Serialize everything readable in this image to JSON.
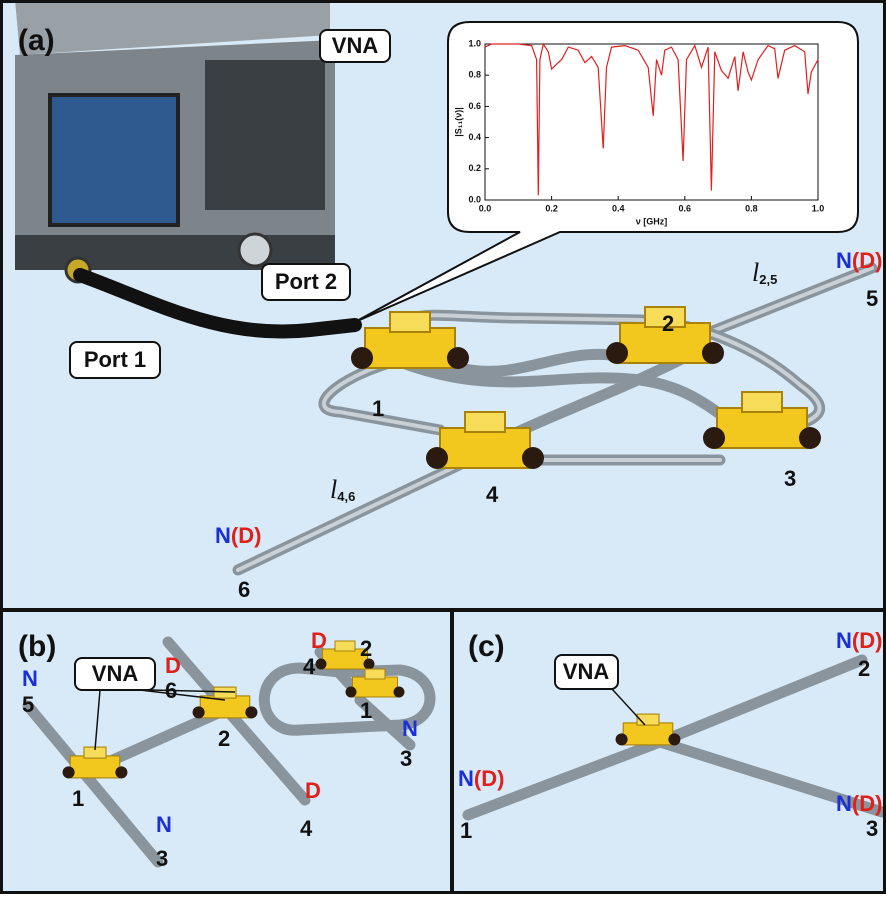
{
  "panel_a": {
    "label": "(a)",
    "vna": "VNA",
    "port1": "Port 1",
    "port2": "Port 2",
    "nodes": [
      "1",
      "2",
      "3",
      "4",
      "5",
      "6"
    ],
    "end5": {
      "n": "N",
      "d": "(D)"
    },
    "end6": {
      "n": "N",
      "d": "(D)"
    },
    "l25": {
      "symbol": "l",
      "sub": "2,5"
    },
    "l46": {
      "symbol": "l",
      "sub": "4,6"
    }
  },
  "panel_b": {
    "label": "(b)",
    "vna": "VNA",
    "labels": [
      "N",
      "5",
      "D",
      "6",
      "1",
      "2",
      "N",
      "3",
      "D",
      "4",
      "D",
      "4",
      "2",
      "1",
      "N",
      "3"
    ]
  },
  "panel_c": {
    "label": "(c)",
    "vna": "VNA",
    "ends": [
      {
        "n": "N",
        "d": "(D)",
        "node": "2"
      },
      {
        "n": "N",
        "d": "(D)",
        "node": "1"
      },
      {
        "n": "N",
        "d": "(D)",
        "node": "3"
      }
    ]
  },
  "chart_data": {
    "type": "line",
    "xlabel": "ν [GHz]",
    "ylabel": "|S₁₁(ν)|",
    "xlim": [
      0,
      1
    ],
    "ylim": [
      0,
      1
    ],
    "xticks": [
      {
        "value": 0,
        "label": "0.0"
      },
      {
        "value": 0.2,
        "label": "0.2"
      },
      {
        "value": 0.4,
        "label": "0.4"
      },
      {
        "value": 0.6,
        "label": "0.6"
      },
      {
        "value": 0.8,
        "label": "0.8"
      },
      {
        "value": 1,
        "label": "1.0"
      }
    ],
    "yticks": [
      {
        "value": 0,
        "label": "0.0"
      },
      {
        "value": 0.2,
        "label": "0.2"
      },
      {
        "value": 0.4,
        "label": "0.4"
      },
      {
        "value": 0.6,
        "label": "0.6"
      },
      {
        "value": 0.8,
        "label": "0.8"
      },
      {
        "value": 1,
        "label": "1.0"
      }
    ],
    "color": "#e02020",
    "x": [
      0,
      0.02,
      0.1,
      0.14,
      0.155,
      0.16,
      0.165,
      0.175,
      0.19,
      0.2,
      0.21,
      0.23,
      0.25,
      0.28,
      0.3,
      0.32,
      0.34,
      0.355,
      0.365,
      0.38,
      0.42,
      0.46,
      0.49,
      0.505,
      0.515,
      0.53,
      0.54,
      0.56,
      0.58,
      0.595,
      0.605,
      0.63,
      0.65,
      0.67,
      0.68,
      0.69,
      0.71,
      0.73,
      0.75,
      0.76,
      0.775,
      0.79,
      0.8,
      0.82,
      0.85,
      0.87,
      0.88,
      0.9,
      0.93,
      0.96,
      0.97,
      0.98,
      1.0
    ],
    "values": [
      0.98,
      1,
      1,
      0.99,
      0.9,
      0.03,
      0.9,
      1,
      0.95,
      0.84,
      0.86,
      0.9,
      0.98,
      0.96,
      0.88,
      0.92,
      0.85,
      0.33,
      0.85,
      0.98,
      0.99,
      0.96,
      0.85,
      0.54,
      0.9,
      0.8,
      0.96,
      0.98,
      0.9,
      0.25,
      0.9,
      0.99,
      0.85,
      0.98,
      0.06,
      0.95,
      0.83,
      0.78,
      0.92,
      0.7,
      0.95,
      0.82,
      0.77,
      0.9,
      0.99,
      0.97,
      0.78,
      0.96,
      0.99,
      0.95,
      0.68,
      0.82,
      0.9
    ]
  }
}
